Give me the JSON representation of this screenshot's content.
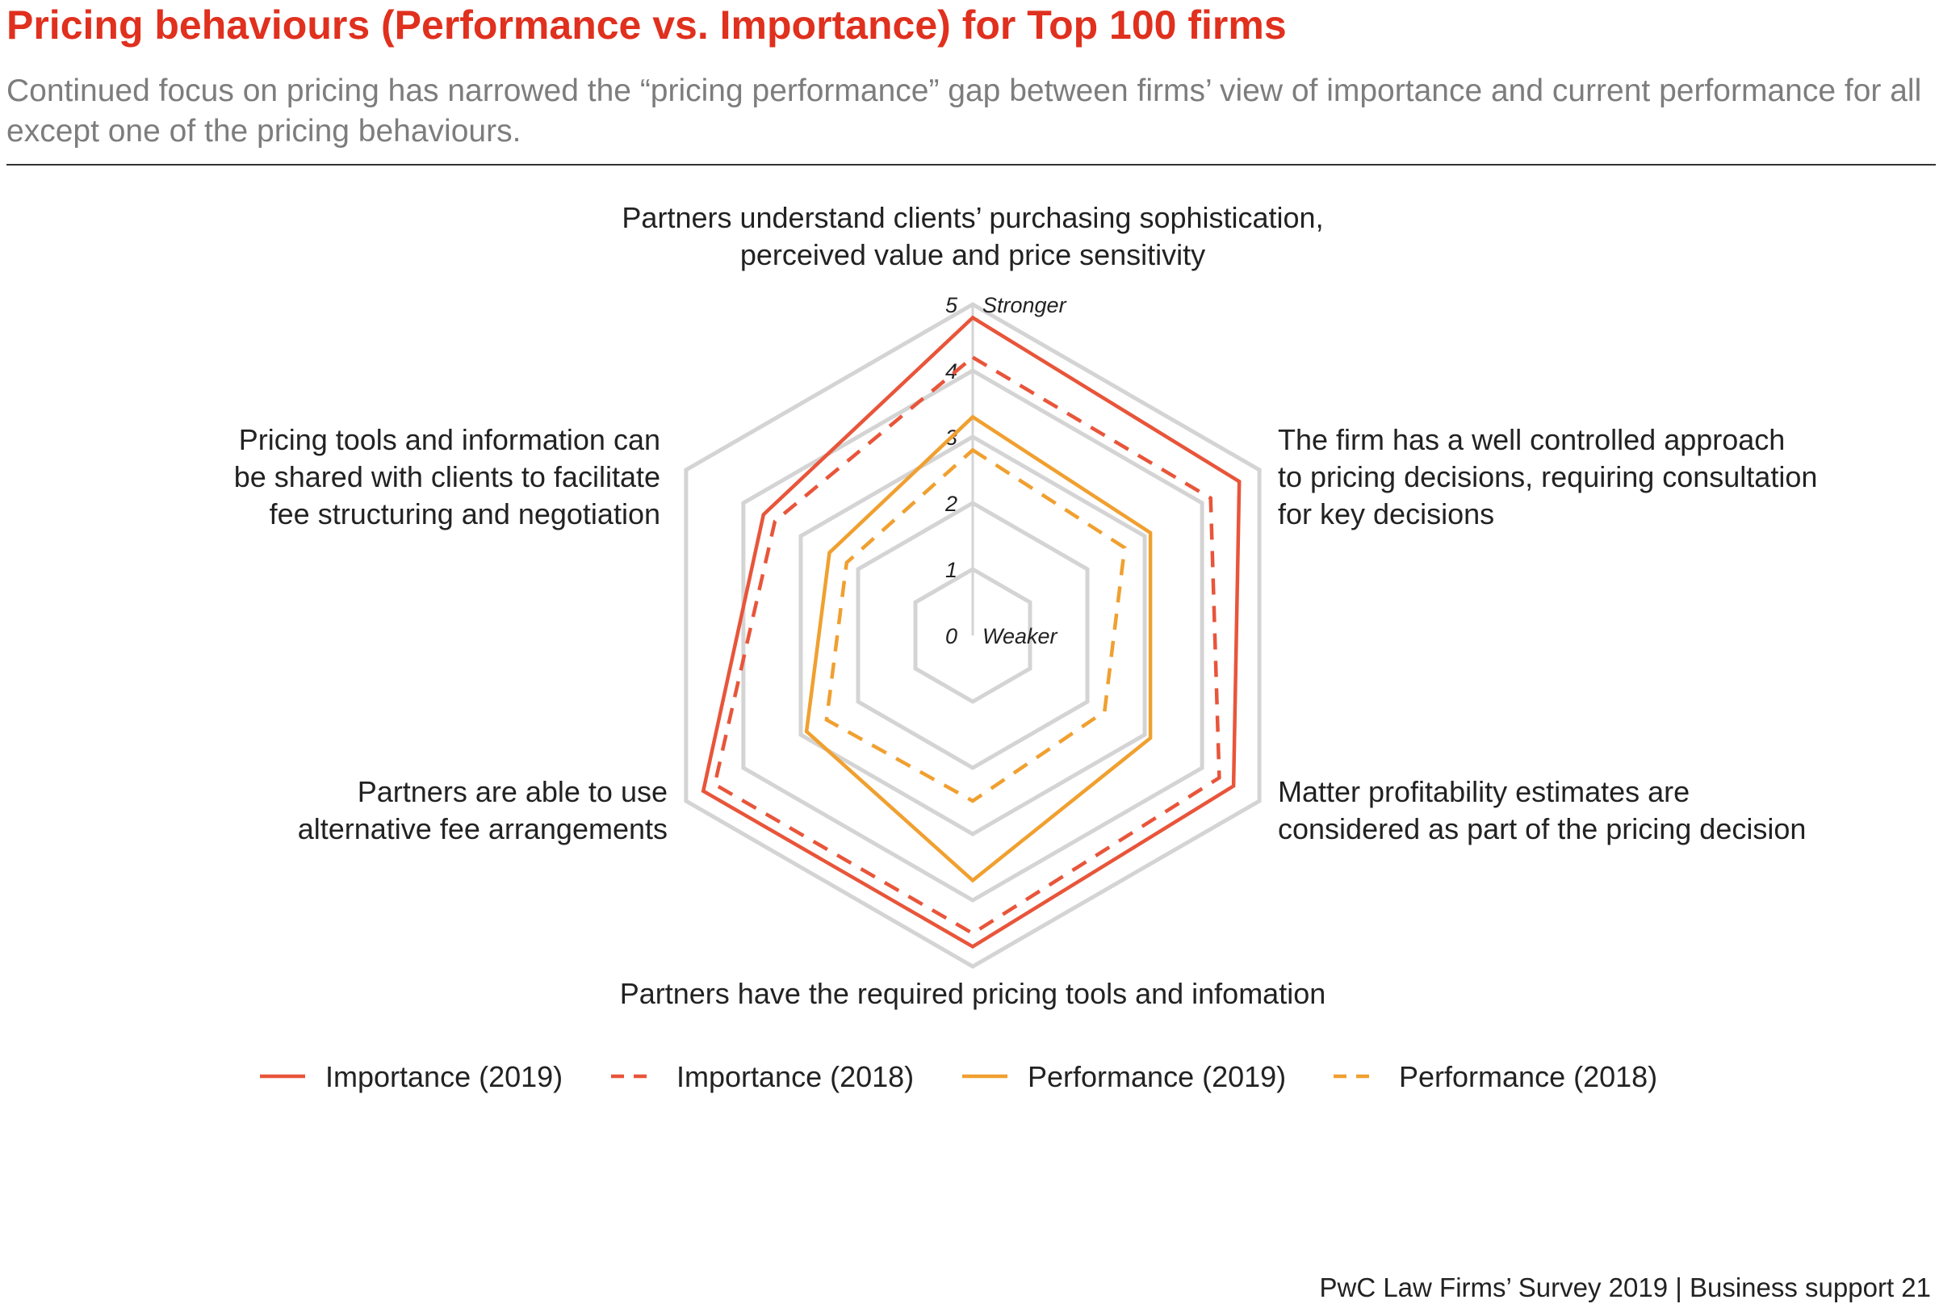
{
  "header": {
    "title": "Pricing behaviours (Performance vs. Importance) for Top 100 firms",
    "subtitle": "Continued focus on pricing has narrowed the “pricing performance” gap between firms’ view of importance and current performance for all except one of the pricing behaviours."
  },
  "footer": {
    "text": "PwC Law Firms’ Survey 2019 | Business support 21"
  },
  "chart_data": {
    "type": "radar",
    "axes": [
      "Partners understand clients’ purchasing sophistication, perceived value and price sensitivity",
      "The firm has a well controlled approach to pricing decisions, requiring consultation for key decisions",
      "Matter profitability estimates are considered as part of the pricing decision",
      "Partners have the required pricing tools and infomation",
      "Partners are able to use alternative fee arrangements",
      "Pricing tools and information can be shared with clients to facilitate fee structuring and negotiation"
    ],
    "scale": {
      "min": 0,
      "max": 5,
      "ticks": [
        0,
        1,
        2,
        3,
        4,
        5
      ],
      "max_label": "Stronger",
      "min_label": "Weaker"
    },
    "series": [
      {
        "name": "Importance (2019)",
        "color": "#e8553a",
        "dash": "solid",
        "values": [
          4.8,
          4.65,
          4.55,
          4.7,
          4.7,
          3.65
        ]
      },
      {
        "name": "Importance (2018)",
        "color": "#e8553a",
        "dash": "dashed",
        "values": [
          4.2,
          4.15,
          4.3,
          4.5,
          4.5,
          3.45
        ]
      },
      {
        "name": "Performance (2019)",
        "color": "#f0a030",
        "dash": "solid",
        "values": [
          3.3,
          3.1,
          3.1,
          3.7,
          2.9,
          2.5
        ]
      },
      {
        "name": "Performance (2018)",
        "color": "#f0a030",
        "dash": "dashed",
        "values": [
          2.8,
          2.65,
          2.3,
          2.5,
          2.55,
          2.2
        ]
      }
    ],
    "grid": true,
    "legend_position": "bottom"
  }
}
